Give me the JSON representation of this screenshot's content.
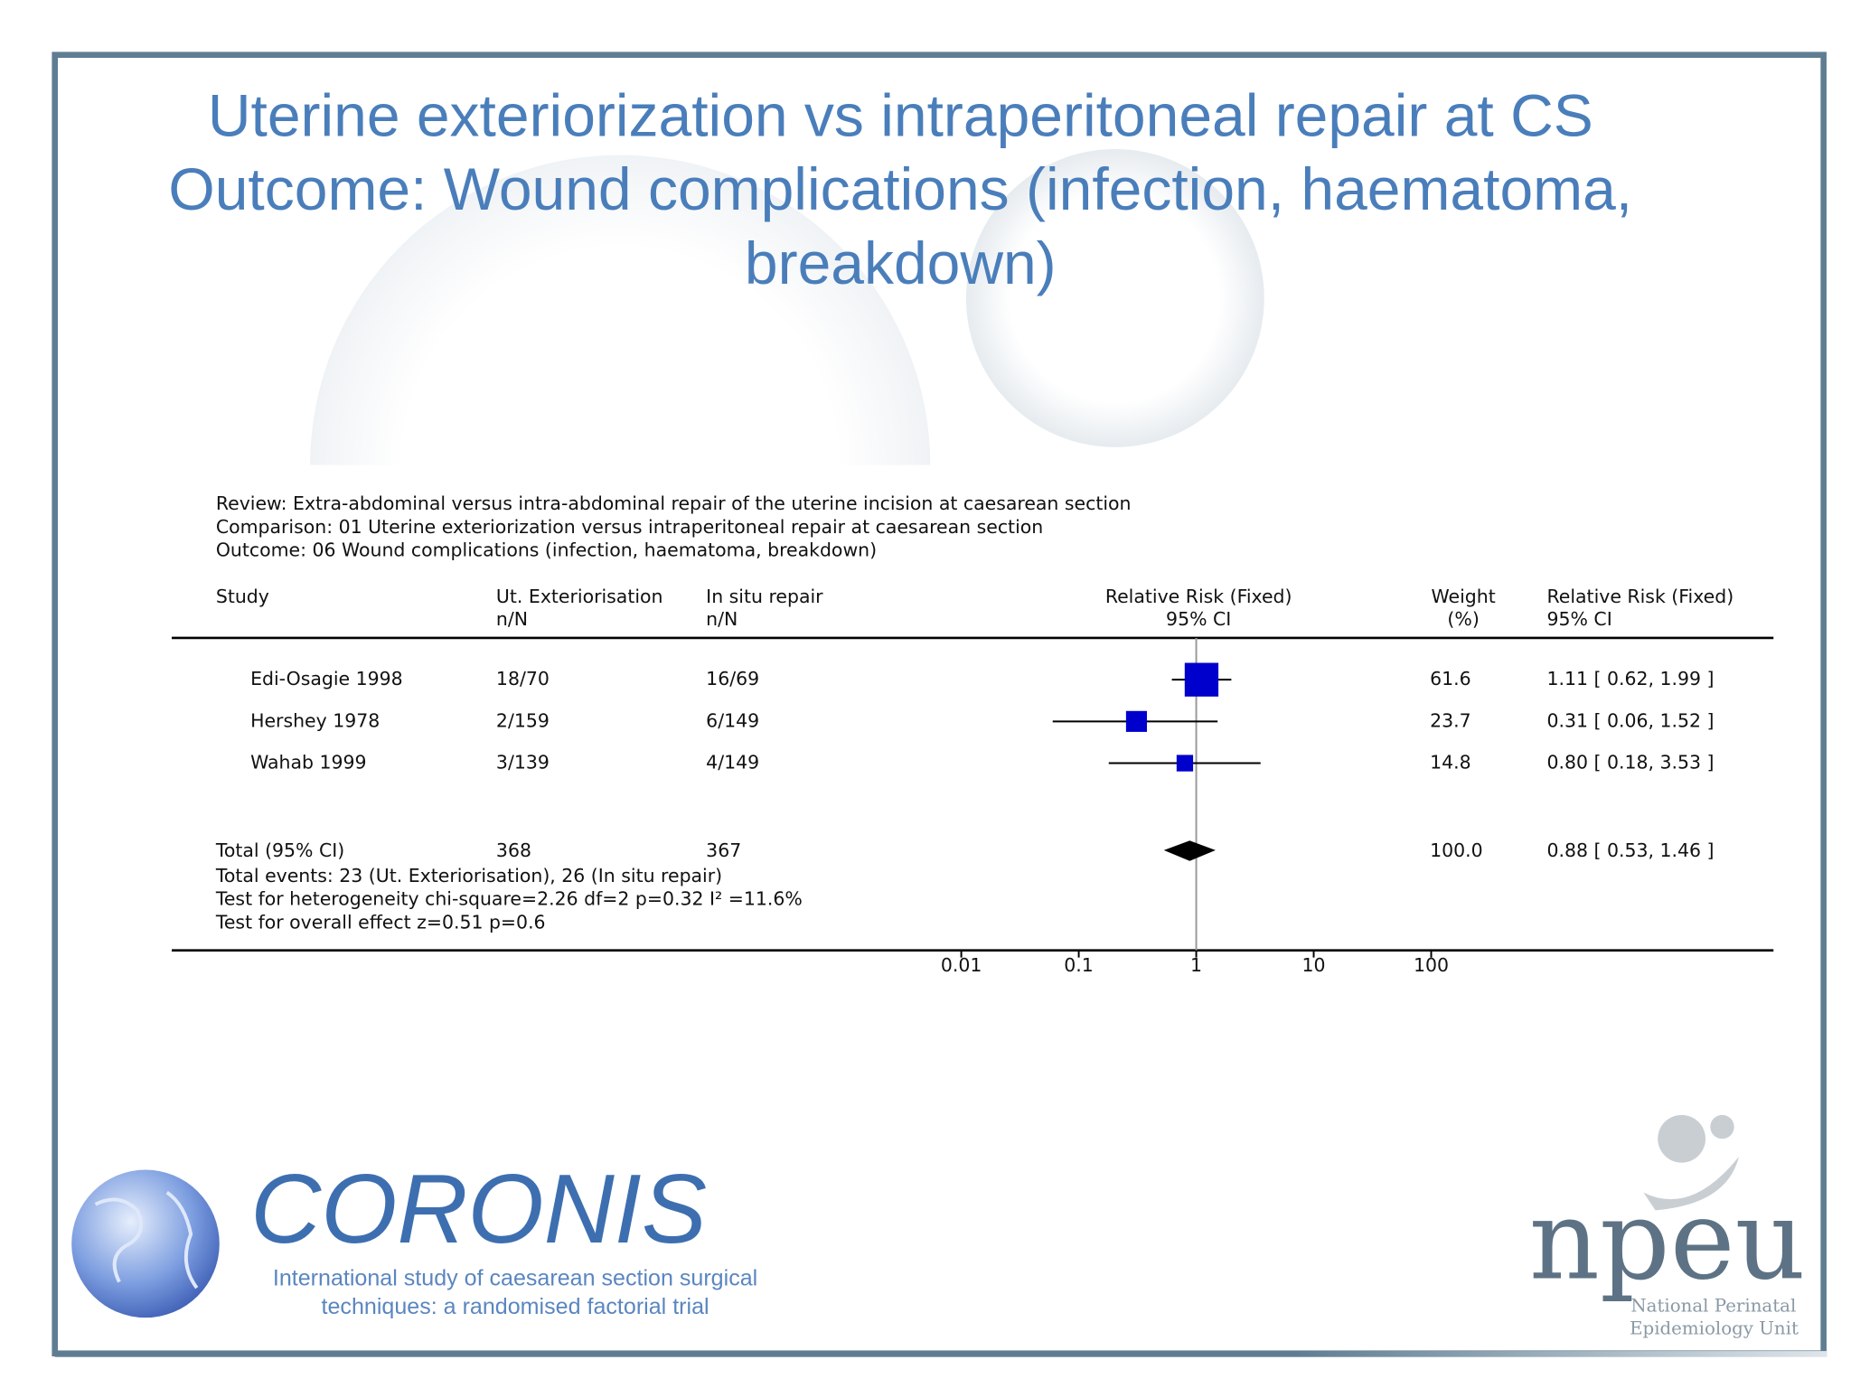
{
  "title": [
    "Uterine exteriorization vs intraperitoneal repair at CS",
    "Outcome: Wound complications (infection, haematoma, breakdown)"
  ],
  "chart_data": {
    "type": "forest",
    "header": [
      "Review:  Extra-abdominal versus intra-abdominal repair of the uterine incision at caesarean section",
      "Comparison:  01 Uterine exteriorization versus intraperitoneal repair at caesarean section",
      "Outcome:  06 Wound complications (infection, haematoma, breakdown)"
    ],
    "columns": {
      "study": "Study",
      "group1": [
        "Ut. Exteriorisation",
        "n/N"
      ],
      "group2": [
        "In situ repair",
        "n/N"
      ],
      "plot": [
        "Relative Risk (Fixed)",
        "95% CI"
      ],
      "weight": [
        "Weight",
        "(%)"
      ],
      "ci": [
        "Relative Risk (Fixed)",
        "95% CI"
      ]
    },
    "studies": [
      {
        "name": "Edi-Osagie 1998",
        "group1": "18/70",
        "group2": "16/69",
        "weight": 61.6,
        "rr": 1.11,
        "lower": 0.62,
        "upper": 1.99,
        "label": "1.11 [ 0.62, 1.99 ]"
      },
      {
        "name": "Hershey 1978",
        "group1": "2/159",
        "group2": "6/149",
        "weight": 23.7,
        "rr": 0.31,
        "lower": 0.06,
        "upper": 1.52,
        "label": "0.31 [ 0.06, 1.52 ]"
      },
      {
        "name": "Wahab 1999",
        "group1": "3/139",
        "group2": "4/149",
        "weight": 14.8,
        "rr": 0.8,
        "lower": 0.18,
        "upper": 3.53,
        "label": "0.80 [ 0.18, 3.53 ]"
      }
    ],
    "total": {
      "name": "Total (95% CI)",
      "group1": 368,
      "group2": 367,
      "weight": 100,
      "weight_label": "100.0",
      "rr": 0.88,
      "lower": 0.53,
      "upper": 1.46,
      "label": "0.88 [ 0.53, 1.46 ]"
    },
    "footnotes": [
      "Total events: 23 (Ut. Exteriorisation), 26 (In situ repair)",
      "Test for heterogeneity chi-square=2.26 df=2 p=0.32 I² =11.6%",
      "Test for overall effect z=0.51  p=0.6"
    ],
    "xlim": [
      0.01,
      100
    ],
    "xticks": [
      0.01,
      0.1,
      1,
      10,
      100
    ],
    "log_x": true,
    "null_line": 1,
    "square_color": "#0000cc",
    "diamond_color": "#000000"
  },
  "logos": {
    "coronis": "CORONIS",
    "coronis_tagline": [
      "International study of caesarean section surgical",
      "techniques: a randomised factorial trial"
    ],
    "npeu": "npeu",
    "npeu_name": [
      "National Perinatal",
      "Epidemiology Unit"
    ]
  }
}
